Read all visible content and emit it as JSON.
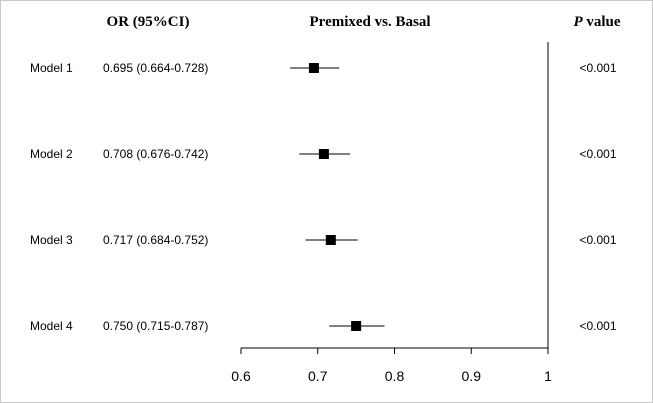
{
  "headers": {
    "or_label": "OR (95%CI)",
    "plot_title": "Premixed vs. Basal",
    "p_italic": "P",
    "p_rest": " value"
  },
  "chart_data": {
    "type": "forest",
    "title": "Premixed vs. Basal",
    "xlim": [
      0.6,
      1.0
    ],
    "ticks": [
      0.6,
      0.7,
      0.8,
      0.9,
      1.0
    ],
    "tick_labels": [
      "0.6",
      "0.7",
      "0.8",
      "0.9",
      "1"
    ],
    "reference_line": 1.0,
    "rows": [
      {
        "model": "Model 1",
        "or_text": "0.695 (0.664-0.728)",
        "p_text": "<0.001",
        "or": 0.695,
        "lower": 0.664,
        "upper": 0.728
      },
      {
        "model": "Model 2",
        "or_text": "0.708 (0.676-0.742)",
        "p_text": "<0.001",
        "or": 0.708,
        "lower": 0.676,
        "upper": 0.742
      },
      {
        "model": "Model 3",
        "or_text": "0.717 (0.684-0.752)",
        "p_text": "<0.001",
        "or": 0.717,
        "lower": 0.684,
        "upper": 0.752
      },
      {
        "model": "Model 4",
        "or_text": "0.750 (0.715-0.787)",
        "p_text": "<0.001",
        "or": 0.75,
        "lower": 0.715,
        "upper": 0.787
      }
    ],
    "marker_color": "#000000"
  }
}
